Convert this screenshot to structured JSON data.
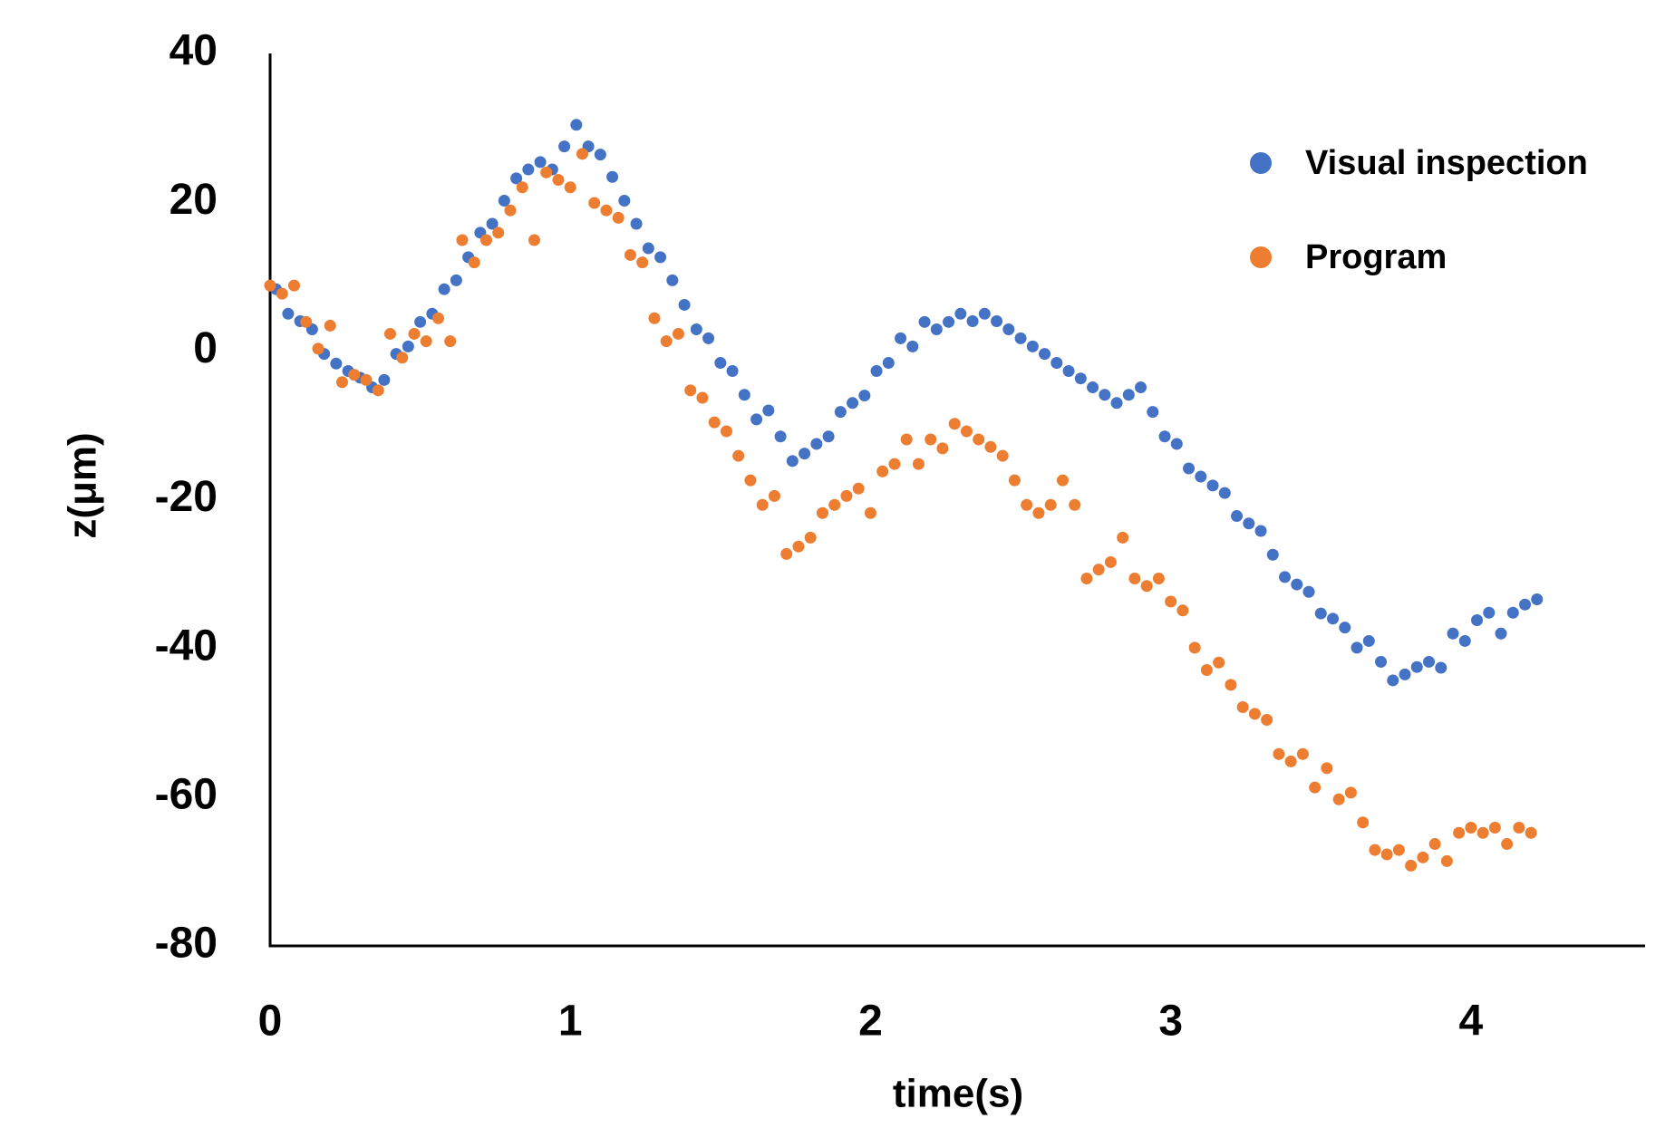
{
  "chart_data": {
    "type": "scatter",
    "x_label": "time(s)",
    "y_label": "z(μm)",
    "xlim": [
      0,
      4.58
    ],
    "xticks": [
      0,
      1,
      2,
      3,
      4
    ],
    "ylim": [
      -80,
      40
    ],
    "yticks": [
      -80,
      -60,
      -40,
      -20,
      0,
      20,
      40
    ],
    "grid": false,
    "legend": "upper right",
    "series": [
      {
        "name": "Visual inspection",
        "color": "#4472c4",
        "x": [
          0.02,
          0.06,
          0.1,
          0.14,
          0.18,
          0.22,
          0.26,
          0.3,
          0.34,
          0.38,
          0.42,
          0.46,
          0.5,
          0.54,
          0.58,
          0.62,
          0.66,
          0.7,
          0.74,
          0.78,
          0.82,
          0.86,
          0.9,
          0.94,
          0.98,
          1.02,
          1.06,
          1.1,
          1.14,
          1.18,
          1.22,
          1.26,
          1.3,
          1.34,
          1.38,
          1.42,
          1.46,
          1.5,
          1.54,
          1.58,
          1.62,
          1.66,
          1.7,
          1.74,
          1.78,
          1.82,
          1.86,
          1.9,
          1.94,
          1.98,
          2.02,
          2.06,
          2.1,
          2.14,
          2.18,
          2.22,
          2.26,
          2.3,
          2.34,
          2.38,
          2.42,
          2.46,
          2.5,
          2.54,
          2.58,
          2.62,
          2.66,
          2.7,
          2.74,
          2.78,
          2.82,
          2.86,
          2.9,
          2.94,
          2.98,
          3.02,
          3.06,
          3.1,
          3.14,
          3.18,
          3.22,
          3.26,
          3.3,
          3.34,
          3.38,
          3.42,
          3.46,
          3.5,
          3.54,
          3.58,
          3.62,
          3.66,
          3.7,
          3.74,
          3.78,
          3.82,
          3.86,
          3.9,
          3.94,
          3.98,
          4.02,
          4.06,
          4.1,
          4.14,
          4.18,
          4.22
        ],
        "values": [
          8.3,
          5.0,
          4.0,
          2.9,
          -0.4,
          -1.7,
          -2.7,
          -3.6,
          -4.9,
          -3.9,
          -0.4,
          0.6,
          3.9,
          5.0,
          8.3,
          9.5,
          12.6,
          15.9,
          17.1,
          20.2,
          23.2,
          24.4,
          25.4,
          24.4,
          27.5,
          30.4,
          27.5,
          26.4,
          23.4,
          20.2,
          17.1,
          13.8,
          12.6,
          9.5,
          6.2,
          2.9,
          1.7,
          -1.6,
          -2.7,
          -5.9,
          -9.2,
          -8.0,
          -11.5,
          -14.8,
          -13.8,
          -12.5,
          -11.5,
          -8.2,
          -7.0,
          -6.0,
          -2.7,
          -1.6,
          1.7,
          0.6,
          3.9,
          2.9,
          3.9,
          5.0,
          4.0,
          5.0,
          4.0,
          2.9,
          1.7,
          0.6,
          -0.4,
          -1.6,
          -2.7,
          -3.7,
          -4.9,
          -5.9,
          -7.0,
          -5.9,
          -4.9,
          -8.2,
          -11.5,
          -12.5,
          -15.8,
          -16.9,
          -18.1,
          -19.1,
          -22.2,
          -23.2,
          -24.2,
          -27.4,
          -30.4,
          -31.4,
          -32.4,
          -35.3,
          -36.0,
          -37.2,
          -39.9,
          -39.0,
          -41.8,
          -44.3,
          -43.5,
          -42.5,
          -41.8,
          -42.6,
          -38.0,
          -39.0,
          -36.2,
          -35.2,
          -38.0,
          -35.2,
          -34.1,
          -33.4
        ]
      },
      {
        "name": "Program",
        "color": "#ed7d31",
        "x": [
          0,
          0.04,
          0.08,
          0.12,
          0.16,
          0.2,
          0.24,
          0.28,
          0.32,
          0.36,
          0.4,
          0.44,
          0.48,
          0.52,
          0.56,
          0.6,
          0.64,
          0.68,
          0.72,
          0.76,
          0.8,
          0.84,
          0.88,
          0.92,
          0.96,
          1.0,
          1.04,
          1.08,
          1.12,
          1.16,
          1.2,
          1.24,
          1.28,
          1.32,
          1.36,
          1.4,
          1.44,
          1.48,
          1.52,
          1.56,
          1.6,
          1.64,
          1.68,
          1.72,
          1.76,
          1.8,
          1.84,
          1.88,
          1.92,
          1.96,
          2.0,
          2.04,
          2.08,
          2.12,
          2.16,
          2.2,
          2.24,
          2.28,
          2.32,
          2.36,
          2.4,
          2.44,
          2.48,
          2.52,
          2.56,
          2.6,
          2.64,
          2.68,
          2.72,
          2.76,
          2.8,
          2.84,
          2.88,
          2.92,
          2.96,
          3.0,
          3.04,
          3.08,
          3.12,
          3.16,
          3.2,
          3.24,
          3.28,
          3.32,
          3.36,
          3.4,
          3.44,
          3.48,
          3.52,
          3.56,
          3.6,
          3.64,
          3.68,
          3.72,
          3.76,
          3.8,
          3.84,
          3.88,
          3.92,
          3.96,
          4.0,
          4.04,
          4.08,
          4.12,
          4.16,
          4.2
        ],
        "values": [
          8.8,
          7.7,
          8.8,
          3.9,
          0.3,
          3.4,
          -4.2,
          -3.2,
          -3.9,
          -5.3,
          2.3,
          -0.9,
          2.3,
          1.3,
          4.4,
          1.3,
          14.9,
          11.9,
          14.9,
          15.9,
          18.9,
          22.0,
          14.9,
          24.0,
          23.0,
          22.0,
          26.5,
          19.9,
          18.9,
          17.9,
          12.9,
          11.9,
          4.4,
          1.3,
          2.3,
          -5.3,
          -6.3,
          -9.6,
          -10.8,
          -14.1,
          -17.4,
          -20.7,
          -19.5,
          -27.3,
          -26.3,
          -25.1,
          -21.8,
          -20.7,
          -19.5,
          -18.5,
          -21.8,
          -16.2,
          -15.2,
          -11.9,
          -15.2,
          -11.9,
          -13.1,
          -9.8,
          -10.8,
          -11.9,
          -12.9,
          -14.1,
          -17.4,
          -20.7,
          -21.8,
          -20.7,
          -17.4,
          -20.7,
          -30.6,
          -29.4,
          -28.4,
          -25.1,
          -30.6,
          -31.6,
          -30.6,
          -33.7,
          -34.9,
          -39.9,
          -42.9,
          -41.9,
          -44.9,
          -47.9,
          -48.8,
          -49.6,
          -54.2,
          -55.2,
          -54.2,
          -58.7,
          -56.1,
          -60.3,
          -59.4,
          -63.4,
          -67.1,
          -67.7,
          -67.1,
          -69.2,
          -68.1,
          -66.3,
          -68.6,
          -64.8,
          -64.1,
          -64.8,
          -64.1,
          -66.3,
          -64.1,
          -64.8
        ]
      }
    ]
  }
}
